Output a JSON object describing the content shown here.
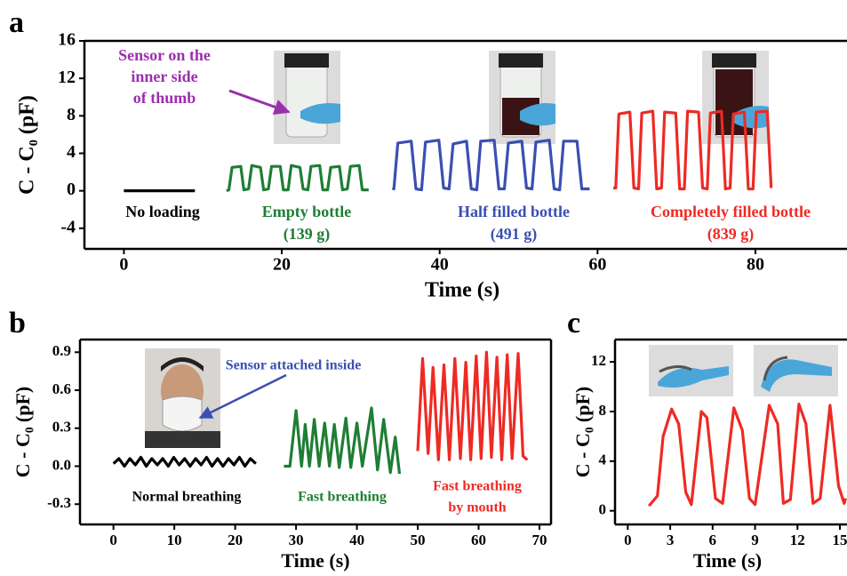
{
  "chart_data": [
    {
      "type": "line",
      "panel": "a",
      "xlabel": "Time (s)",
      "ylabel": "C - C₀ (pF)",
      "xlim": [
        -5,
        91.6
      ],
      "ylim": [
        -6.2,
        16
      ],
      "xticks": [
        0,
        20,
        40,
        60,
        80
      ],
      "yticks": [
        -4,
        0,
        4,
        8,
        12,
        16
      ],
      "series": [
        {
          "color": "#000000",
          "x": [
            0,
            9
          ],
          "values": [
            0,
            0
          ]
        },
        {
          "color": "#1e7e34",
          "x": [
            13,
            13.3,
            13.7,
            14.8,
            15.2,
            15.8,
            16.2,
            17.3,
            17.7,
            18.3,
            18.7,
            19.8,
            20.2,
            20.8,
            21.2,
            22.3,
            22.7,
            23.3,
            23.7,
            24.8,
            25.2,
            25.8,
            26.2,
            27.3,
            27.7,
            28.3,
            28.7,
            29.8,
            30.2,
            31
          ],
          "values": [
            0,
            0.1,
            2.5,
            2.6,
            0.1,
            0.2,
            2.7,
            2.5,
            0.1,
            0.2,
            2.6,
            2.6,
            0.1,
            0.1,
            2.7,
            2.5,
            0.2,
            0.1,
            2.6,
            2.7,
            0.1,
            0.1,
            2.5,
            2.6,
            0.1,
            0.2,
            2.6,
            2.7,
            0.1,
            0.1
          ]
        },
        {
          "color": "#3a4fb0",
          "x": [
            34,
            34.2,
            34.7,
            36.4,
            37.0,
            37.7,
            38.2,
            39.9,
            40.5,
            41.2,
            41.7,
            43.4,
            44.0,
            44.7,
            45.2,
            46.9,
            47.5,
            48.2,
            48.7,
            50.4,
            51.0,
            51.7,
            52.2,
            53.9,
            54.5,
            55.2,
            55.7,
            57.4,
            58.0,
            59
          ],
          "values": [
            0.3,
            0.2,
            5.1,
            5.3,
            0.2,
            0.1,
            5.2,
            5.4,
            0.3,
            0.2,
            5.0,
            5.3,
            0.2,
            0.1,
            5.3,
            5.4,
            0.2,
            0.2,
            5.1,
            5.3,
            0.3,
            0.2,
            5.2,
            5.4,
            0.2,
            0.1,
            5.3,
            5.3,
            0.2,
            0.2
          ]
        },
        {
          "color": "#ee2a24",
          "x": [
            62,
            62.3,
            62.7,
            64.1,
            64.6,
            65.2,
            65.6,
            67.0,
            67.5,
            68.1,
            68.5,
            69.9,
            70.4,
            71.0,
            71.4,
            72.8,
            73.3,
            73.9,
            74.3,
            75.7,
            76.2,
            76.8,
            77.2,
            78.6,
            79.1,
            79.7,
            80.1,
            81.5,
            82.0
          ],
          "values": [
            0.3,
            0.3,
            8.2,
            8.4,
            0.3,
            0.2,
            8.3,
            8.5,
            0.2,
            0.3,
            8.4,
            8.3,
            0.2,
            0.2,
            8.5,
            8.4,
            0.3,
            0.2,
            8.3,
            8.5,
            0.2,
            0.3,
            8.2,
            8.4,
            0.2,
            0.2,
            8.4,
            8.5,
            0.3
          ]
        }
      ],
      "annotations": [
        {
          "text": "No loading",
          "color": "#000000"
        },
        {
          "text": "Empty bottle",
          "color": "#1e7e34"
        },
        {
          "text": "(139 g)",
          "color": "#1e7e34"
        },
        {
          "text": "Half filled bottle",
          "color": "#3a4fb0"
        },
        {
          "text": "(491 g)",
          "color": "#3a4fb0"
        },
        {
          "text": "Completely filled bottle",
          "color": "#ee2a24"
        },
        {
          "text": "(839 g)",
          "color": "#ee2a24"
        },
        {
          "text": "Sensor on the",
          "color": "#9b2fae"
        },
        {
          "text": "inner side",
          "color": "#9b2fae"
        },
        {
          "text": "of  thumb",
          "color": "#9b2fae"
        }
      ]
    },
    {
      "type": "line",
      "panel": "b",
      "xlabel": "Time (s)",
      "ylabel": "C - C₀ (pF)",
      "xlim": [
        -5.5,
        71.9
      ],
      "ylim": [
        -0.46,
        1.0
      ],
      "xticks": [
        0,
        10,
        20,
        30,
        40,
        50,
        60,
        70
      ],
      "yticks": [
        -0.3,
        {
          "value": 0,
          "label": "0.0"
        },
        0.3,
        0.6,
        0.9
      ],
      "series": [
        {
          "color": "#000000",
          "x": [
            0,
            0.9,
            1.8,
            2.7,
            3.6,
            4.5,
            5.4,
            6.3,
            7.2,
            8.1,
            9.0,
            9.9,
            10.8,
            11.7,
            12.6,
            13.5,
            14.4,
            15.3,
            16.2,
            17.1,
            18.0,
            18.9,
            19.8,
            20.7,
            21.6,
            22.5,
            23.4
          ],
          "values": [
            0.02,
            0.06,
            0.0,
            0.06,
            0.01,
            0.07,
            0.0,
            0.06,
            0.01,
            0.06,
            0.0,
            0.07,
            0.01,
            0.06,
            0.0,
            0.06,
            0.01,
            0.07,
            0.0,
            0.06,
            0.0,
            0.06,
            0.01,
            0.07,
            0.0,
            0.06,
            0.02
          ]
        },
        {
          "color": "#1e7e34",
          "x": [
            28,
            29,
            30,
            30.9,
            31.5,
            32.2,
            33.0,
            33.8,
            34.7,
            35.5,
            36.3,
            37.1,
            38.2,
            39.0,
            40.0,
            40.9,
            42.4,
            43.4,
            44.4,
            45.5,
            46.3,
            47
          ],
          "values": [
            0.0,
            0.0,
            0.44,
            0.0,
            0.33,
            0.0,
            0.37,
            0.0,
            0.34,
            0.0,
            0.33,
            -0.01,
            0.38,
            -0.01,
            0.34,
            0.0,
            0.46,
            -0.03,
            0.37,
            -0.05,
            0.23,
            -0.06
          ]
        },
        {
          "color": "#ee2a24",
          "x": [
            50,
            50.8,
            51.7,
            52.5,
            53.4,
            54.3,
            55.2,
            56.1,
            57.0,
            57.9,
            58.7,
            59.6,
            60.4,
            61.3,
            62.1,
            63.0,
            63.8,
            64.7,
            65.5,
            66.5,
            67.3,
            68
          ],
          "values": [
            0.12,
            0.85,
            0.1,
            0.78,
            0.05,
            0.8,
            0.05,
            0.85,
            0.06,
            0.82,
            0.05,
            0.87,
            0.06,
            0.9,
            0.07,
            0.86,
            0.05,
            0.88,
            0.06,
            0.89,
            0.08,
            0.05
          ]
        }
      ],
      "annotations": [
        {
          "text": "Sensor attached inside",
          "color": "#3a4fb0"
        },
        {
          "text": "Normal breathing",
          "color": "#000000"
        },
        {
          "text": "Fast breathing",
          "color": "#1e7e34"
        },
        {
          "text": "Fast breathing",
          "color": "#ee2a24"
        },
        {
          "text": "by mouth",
          "color": "#ee2a24"
        }
      ]
    },
    {
      "type": "line",
      "panel": "c",
      "xlabel": "Time (s)",
      "ylabel": "C - C₀ (pF)",
      "xlim": [
        -0.9,
        15.5
      ],
      "ylim": [
        -1.1,
        13.8
      ],
      "xticks": [
        0,
        3,
        6,
        9,
        12,
        15
      ],
      "yticks": [
        0,
        4,
        8,
        12
      ],
      "series": [
        {
          "color": "#ee2a24",
          "x": [
            1.5,
            2.1,
            2.5,
            3.1,
            3.6,
            4.1,
            4.5,
            5.2,
            5.6,
            6.2,
            6.7,
            7.5,
            8.1,
            8.6,
            9.0,
            10.0,
            10.6,
            11.0,
            11.5,
            12.1,
            12.6,
            13.1,
            13.6,
            14.3,
            14.9,
            15.3,
            15.4
          ],
          "values": [
            0.4,
            1.2,
            6,
            8.2,
            7,
            1.5,
            0.5,
            8.0,
            7.5,
            1.0,
            0.6,
            8.3,
            6.5,
            1.0,
            0.5,
            8.5,
            7.0,
            0.6,
            0.9,
            8.6,
            7.0,
            0.6,
            1.0,
            8.5,
            2.0,
            0.6,
            1.0
          ]
        }
      ],
      "annotations": []
    }
  ]
}
